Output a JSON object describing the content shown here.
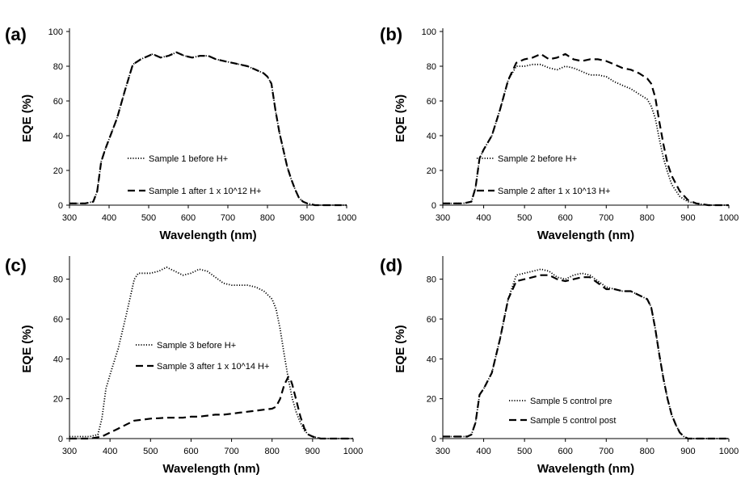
{
  "chart_data": [
    {
      "panel": "(a)",
      "type": "line",
      "xlabel": "Wavelength (nm)",
      "ylabel": "EQE (%)",
      "xlim": [
        300,
        1000
      ],
      "ylim": [
        0,
        100
      ],
      "xticks": [
        300,
        400,
        500,
        600,
        700,
        800,
        900,
        1000
      ],
      "yticks": [
        0,
        20,
        40,
        60,
        80,
        100
      ],
      "grid": false,
      "legend_position": "lower-left",
      "series": [
        {
          "name": "Sample 1 before H+",
          "style": "dotted",
          "x": [
            300,
            340,
            360,
            370,
            380,
            390,
            400,
            420,
            440,
            460,
            480,
            500,
            510,
            530,
            550,
            570,
            590,
            610,
            630,
            650,
            670,
            690,
            710,
            730,
            750,
            770,
            790,
            800,
            810,
            820,
            830,
            840,
            850,
            860,
            870,
            880,
            890,
            900,
            920,
            950,
            1000
          ],
          "y": [
            1,
            1,
            2,
            8,
            25,
            32,
            38,
            50,
            66,
            81,
            84,
            86,
            87,
            85,
            86,
            88,
            86,
            85,
            86,
            86,
            84,
            83,
            82,
            81,
            80,
            78,
            76,
            74,
            70,
            55,
            42,
            32,
            22,
            15,
            9,
            4,
            2,
            1,
            0,
            0,
            0
          ]
        },
        {
          "name": "Sample 1 after 1 x 10^12 H+",
          "style": "dashed",
          "x": [
            300,
            340,
            360,
            370,
            380,
            390,
            400,
            420,
            440,
            460,
            480,
            500,
            510,
            530,
            550,
            570,
            590,
            610,
            630,
            650,
            670,
            690,
            710,
            730,
            750,
            770,
            790,
            800,
            810,
            820,
            830,
            840,
            850,
            860,
            870,
            880,
            890,
            900,
            920,
            950,
            1000
          ],
          "y": [
            1,
            1,
            2,
            8,
            25,
            32,
            38,
            50,
            66,
            81,
            84,
            86,
            87,
            85,
            86,
            88,
            86,
            85,
            86,
            86,
            84,
            83,
            82,
            81,
            80,
            78,
            76,
            74,
            70,
            55,
            42,
            32,
            22,
            15,
            9,
            4,
            2,
            1,
            0,
            0,
            0
          ]
        }
      ]
    },
    {
      "panel": "(b)",
      "type": "line",
      "xlabel": "Wavelength (nm)",
      "ylabel": "EQE (%)",
      "xlim": [
        300,
        1000
      ],
      "ylim": [
        0,
        100
      ],
      "xticks": [
        300,
        400,
        500,
        600,
        700,
        800,
        900,
        1000
      ],
      "yticks": [
        0,
        20,
        40,
        60,
        80,
        100
      ],
      "grid": false,
      "legend_position": "lower-left",
      "series": [
        {
          "name": "Sample 2 before H+",
          "style": "dotted",
          "x": [
            300,
            350,
            370,
            380,
            390,
            400,
            420,
            440,
            460,
            480,
            500,
            520,
            540,
            560,
            580,
            600,
            620,
            640,
            660,
            680,
            700,
            720,
            740,
            760,
            780,
            800,
            810,
            820,
            830,
            840,
            850,
            860,
            880,
            900,
            920,
            950,
            1000
          ],
          "y": [
            1,
            1,
            2,
            10,
            27,
            32,
            40,
            55,
            72,
            80,
            80,
            81,
            81,
            79,
            78,
            80,
            79,
            77,
            75,
            75,
            74,
            71,
            69,
            67,
            64,
            61,
            57,
            50,
            38,
            27,
            19,
            12,
            5,
            2,
            1,
            0,
            0
          ]
        },
        {
          "name": "Sample 2 after 1 x 10^13 H+",
          "style": "dashed",
          "x": [
            300,
            350,
            370,
            380,
            390,
            400,
            420,
            440,
            460,
            480,
            500,
            520,
            540,
            560,
            580,
            600,
            620,
            640,
            660,
            680,
            700,
            720,
            740,
            760,
            780,
            800,
            810,
            820,
            830,
            840,
            850,
            860,
            880,
            900,
            920,
            950,
            1000
          ],
          "y": [
            1,
            1,
            2,
            10,
            27,
            32,
            40,
            55,
            72,
            82,
            84,
            85,
            87,
            84,
            85,
            87,
            84,
            83,
            84,
            84,
            83,
            81,
            79,
            78,
            76,
            73,
            70,
            62,
            48,
            35,
            24,
            17,
            8,
            3,
            1,
            0,
            0
          ]
        }
      ]
    },
    {
      "panel": "(c)",
      "type": "line",
      "xlabel": "Wavelength (nm)",
      "ylabel": "EQE (%)",
      "xlim": [
        300,
        1000
      ],
      "ylim": [
        0,
        90
      ],
      "xticks": [
        300,
        400,
        500,
        600,
        700,
        800,
        900,
        1000
      ],
      "yticks": [
        0,
        20,
        40,
        60,
        80
      ],
      "grid": false,
      "legend_position": "center-left",
      "series": [
        {
          "name": "Sample 3 before H+",
          "style": "dotted",
          "x": [
            300,
            350,
            370,
            380,
            390,
            400,
            420,
            440,
            460,
            470,
            480,
            500,
            520,
            540,
            560,
            580,
            600,
            620,
            640,
            660,
            680,
            700,
            720,
            740,
            760,
            780,
            800,
            810,
            820,
            830,
            840,
            850,
            860,
            870,
            880,
            890,
            900,
            920,
            950,
            1000
          ],
          "y": [
            1,
            1,
            2,
            10,
            25,
            32,
            45,
            62,
            80,
            83,
            83,
            83,
            84,
            86,
            84,
            82,
            83,
            85,
            84,
            81,
            78,
            77,
            77,
            77,
            76,
            74,
            70,
            65,
            55,
            42,
            30,
            20,
            13,
            8,
            4,
            2,
            1,
            0,
            0,
            0
          ]
        },
        {
          "name": "Sample 3 after 1 x 10^14 H+",
          "style": "dashed",
          "x": [
            300,
            350,
            380,
            400,
            420,
            440,
            460,
            480,
            500,
            520,
            540,
            560,
            580,
            600,
            620,
            640,
            660,
            680,
            700,
            720,
            740,
            760,
            780,
            800,
            810,
            820,
            830,
            840,
            845,
            850,
            860,
            870,
            880,
            890,
            900,
            920,
            950,
            1000
          ],
          "y": [
            0,
            0,
            1,
            3,
            5,
            7,
            9,
            9.5,
            10,
            10.2,
            10.5,
            10.5,
            10.5,
            11,
            11,
            11.5,
            12,
            12,
            12.5,
            13,
            13.5,
            14,
            14.5,
            15,
            16,
            20,
            27,
            31,
            30,
            27,
            19,
            11,
            5,
            2,
            1,
            0,
            0,
            0
          ]
        }
      ]
    },
    {
      "panel": "(d)",
      "type": "line",
      "xlabel": "Wavelength (nm)",
      "ylabel": "EQE (%)",
      "xlim": [
        300,
        1000
      ],
      "ylim": [
        0,
        90
      ],
      "xticks": [
        300,
        400,
        500,
        600,
        700,
        800,
        900,
        1000
      ],
      "yticks": [
        0,
        20,
        40,
        60,
        80
      ],
      "grid": false,
      "legend_position": "lower-center",
      "series": [
        {
          "name": "Sample 5 control pre",
          "style": "dotted",
          "x": [
            300,
            340,
            360,
            370,
            380,
            390,
            400,
            420,
            440,
            460,
            480,
            500,
            520,
            540,
            560,
            580,
            600,
            620,
            640,
            660,
            680,
            700,
            720,
            740,
            760,
            780,
            800,
            810,
            820,
            830,
            840,
            850,
            860,
            870,
            880,
            890,
            900,
            920,
            950,
            1000
          ],
          "y": [
            1,
            1,
            1,
            2,
            8,
            22,
            25,
            33,
            50,
            70,
            82,
            83,
            84,
            85,
            84,
            81,
            80,
            82,
            83,
            82,
            79,
            76,
            75,
            74,
            74,
            72,
            70,
            66,
            55,
            42,
            30,
            20,
            12,
            7,
            3,
            1,
            0,
            0,
            0,
            0
          ]
        },
        {
          "name": "Sample 5 control post",
          "style": "dashed",
          "x": [
            300,
            340,
            360,
            370,
            380,
            390,
            400,
            420,
            440,
            460,
            480,
            500,
            520,
            540,
            560,
            580,
            600,
            620,
            640,
            660,
            680,
            700,
            720,
            740,
            760,
            780,
            800,
            810,
            820,
            830,
            840,
            850,
            860,
            870,
            880,
            890,
            900,
            920,
            950,
            1000
          ],
          "y": [
            1,
            1,
            1,
            2,
            8,
            22,
            25,
            33,
            50,
            70,
            79,
            80,
            81,
            82,
            82,
            80,
            79,
            80,
            81,
            81,
            78,
            75,
            75,
            74,
            74,
            72,
            70,
            66,
            55,
            42,
            30,
            20,
            12,
            7,
            3,
            1,
            0,
            0,
            0,
            0
          ]
        }
      ]
    }
  ]
}
